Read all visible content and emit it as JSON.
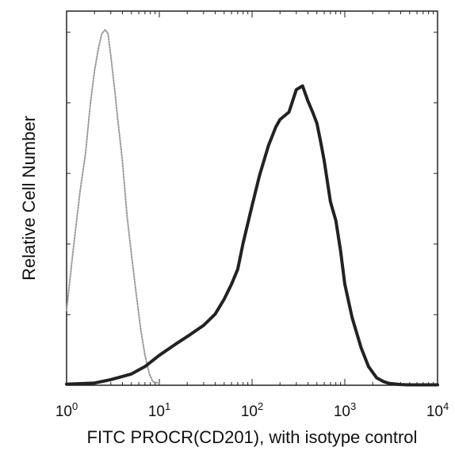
{
  "chart_data": {
    "type": "area",
    "xscale": "log",
    "xlim": [
      1,
      10000
    ],
    "ylim": [
      0,
      100
    ],
    "xlabel": "FITC PROCR(CD201), with isotype control",
    "ylabel": "Relative Cell Number",
    "x_tick_labels": [
      {
        "base": "10",
        "exp": "0"
      },
      {
        "base": "10",
        "exp": "1"
      },
      {
        "base": "10",
        "exp": "2"
      },
      {
        "base": "10",
        "exp": "3"
      },
      {
        "base": "10",
        "exp": "4"
      }
    ],
    "series": [
      {
        "style": "dotted",
        "color": "#9a9a9a",
        "x": [
          1.0,
          1.2,
          1.4,
          1.6,
          1.8,
          2.0,
          2.2,
          2.4,
          2.6,
          2.8,
          3.0,
          3.3,
          3.6,
          4.0,
          4.5,
          5.0,
          5.6,
          6.3,
          7.0,
          7.8,
          8.5,
          10.0
        ],
        "y": [
          20,
          38,
          52,
          62,
          75,
          84,
          90,
          94,
          95,
          94,
          88,
          79,
          70,
          60,
          45,
          35,
          25,
          15,
          8,
          3,
          1,
          0.5
        ]
      },
      {
        "style": "solid",
        "color": "#222222",
        "x": [
          1.0,
          2.0,
          3.0,
          5.0,
          7.0,
          10.0,
          15.0,
          20.0,
          30.0,
          40.0,
          50.0,
          60.0,
          70.0,
          80.0,
          100.0,
          120.0,
          150.0,
          180.0,
          200.0,
          250.0,
          300.0,
          350.0,
          400.0,
          450.0,
          500.0,
          550.0,
          600.0,
          700.0,
          800.0,
          900.0,
          1000.0,
          1200.0,
          1500.0,
          1800.0,
          2200.0,
          2600.0,
          3000.0,
          4000.0,
          5000.0,
          10000.0
        ],
        "y": [
          0.3,
          0.6,
          1.5,
          3,
          5,
          8,
          11,
          13,
          16,
          19,
          23,
          27,
          31,
          38,
          48,
          56,
          64,
          69,
          71,
          73,
          79,
          80,
          76,
          73,
          70,
          65,
          60,
          49,
          44,
          36,
          27,
          18,
          10,
          5,
          2,
          1,
          0.5,
          0.2,
          0.1,
          0.1
        ]
      }
    ]
  }
}
